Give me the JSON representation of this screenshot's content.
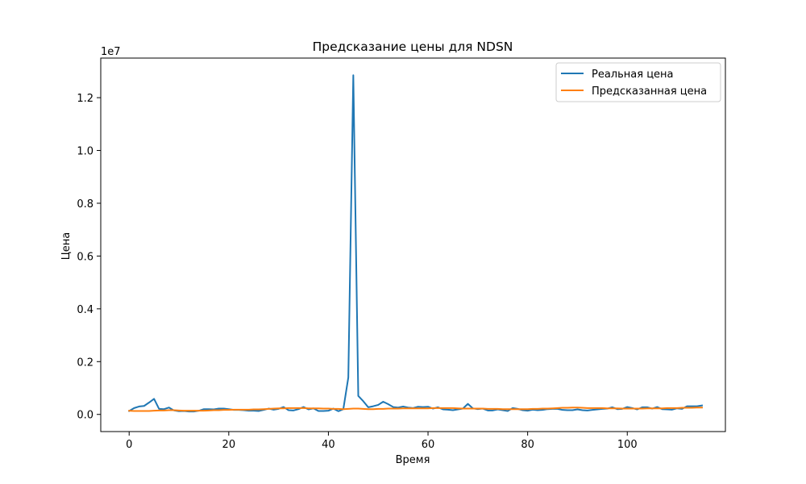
{
  "chart_data": {
    "type": "line",
    "title": "Предсказание цены для NDSN",
    "xlabel": "Время",
    "ylabel": "Цена",
    "y_offset_text": "1e7",
    "xlim": [
      -5.7,
      119.7
    ],
    "ylim": [
      -0.065,
      1.35
    ],
    "x_ticks": [
      0,
      20,
      40,
      60,
      80,
      100
    ],
    "y_ticks": [
      0.0,
      0.2,
      0.4,
      0.6,
      0.8,
      1.0,
      1.2
    ],
    "y_tick_labels": [
      "0.0",
      "0.2",
      "0.4",
      "0.6",
      "0.8",
      "1.0",
      "1.2"
    ],
    "grid": false,
    "legend_position": "top-right",
    "series": [
      {
        "name": "Реальная цена",
        "color": "#1f77b4",
        "values": [
          0.013,
          0.024,
          0.03,
          0.032,
          0.045,
          0.059,
          0.021,
          0.02,
          0.026,
          0.015,
          0.012,
          0.013,
          0.011,
          0.011,
          0.014,
          0.02,
          0.02,
          0.019,
          0.022,
          0.022,
          0.02,
          0.017,
          0.017,
          0.016,
          0.014,
          0.014,
          0.013,
          0.017,
          0.022,
          0.018,
          0.021,
          0.028,
          0.016,
          0.015,
          0.02,
          0.028,
          0.019,
          0.023,
          0.013,
          0.013,
          0.014,
          0.022,
          0.012,
          0.02,
          0.14,
          1.285,
          0.07,
          0.05,
          0.027,
          0.031,
          0.036,
          0.048,
          0.039,
          0.028,
          0.026,
          0.03,
          0.026,
          0.024,
          0.029,
          0.028,
          0.029,
          0.022,
          0.027,
          0.019,
          0.018,
          0.016,
          0.019,
          0.022,
          0.04,
          0.023,
          0.02,
          0.022,
          0.015,
          0.015,
          0.019,
          0.016,
          0.013,
          0.024,
          0.021,
          0.016,
          0.014,
          0.018,
          0.016,
          0.017,
          0.02,
          0.021,
          0.021,
          0.017,
          0.016,
          0.016,
          0.019,
          0.016,
          0.015,
          0.017,
          0.019,
          0.021,
          0.022,
          0.027,
          0.02,
          0.021,
          0.028,
          0.024,
          0.019,
          0.027,
          0.027,
          0.022,
          0.028,
          0.02,
          0.019,
          0.018,
          0.023,
          0.021,
          0.031,
          0.031,
          0.031,
          0.034
        ]
      },
      {
        "name": "Предсказанная цена",
        "color": "#ff7f0e",
        "values": [
          0.014,
          0.013,
          0.013,
          0.013,
          0.013,
          0.014,
          0.015,
          0.015,
          0.016,
          0.016,
          0.015,
          0.014,
          0.014,
          0.014,
          0.014,
          0.014,
          0.015,
          0.016,
          0.016,
          0.017,
          0.017,
          0.018,
          0.018,
          0.018,
          0.018,
          0.019,
          0.019,
          0.02,
          0.021,
          0.022,
          0.023,
          0.023,
          0.024,
          0.024,
          0.024,
          0.024,
          0.023,
          0.023,
          0.023,
          0.022,
          0.022,
          0.021,
          0.021,
          0.02,
          0.021,
          0.022,
          0.022,
          0.021,
          0.02,
          0.02,
          0.021,
          0.021,
          0.022,
          0.022,
          0.022,
          0.023,
          0.023,
          0.023,
          0.023,
          0.023,
          0.023,
          0.024,
          0.024,
          0.024,
          0.024,
          0.024,
          0.023,
          0.022,
          0.022,
          0.022,
          0.022,
          0.022,
          0.021,
          0.021,
          0.021,
          0.02,
          0.02,
          0.02,
          0.02,
          0.02,
          0.02,
          0.021,
          0.021,
          0.022,
          0.022,
          0.023,
          0.024,
          0.025,
          0.025,
          0.026,
          0.026,
          0.025,
          0.024,
          0.024,
          0.024,
          0.024,
          0.023,
          0.023,
          0.023,
          0.022,
          0.022,
          0.022,
          0.022,
          0.022,
          0.023,
          0.023,
          0.023,
          0.023,
          0.024,
          0.024,
          0.024,
          0.025,
          0.025,
          0.025,
          0.026,
          0.026
        ]
      }
    ]
  }
}
